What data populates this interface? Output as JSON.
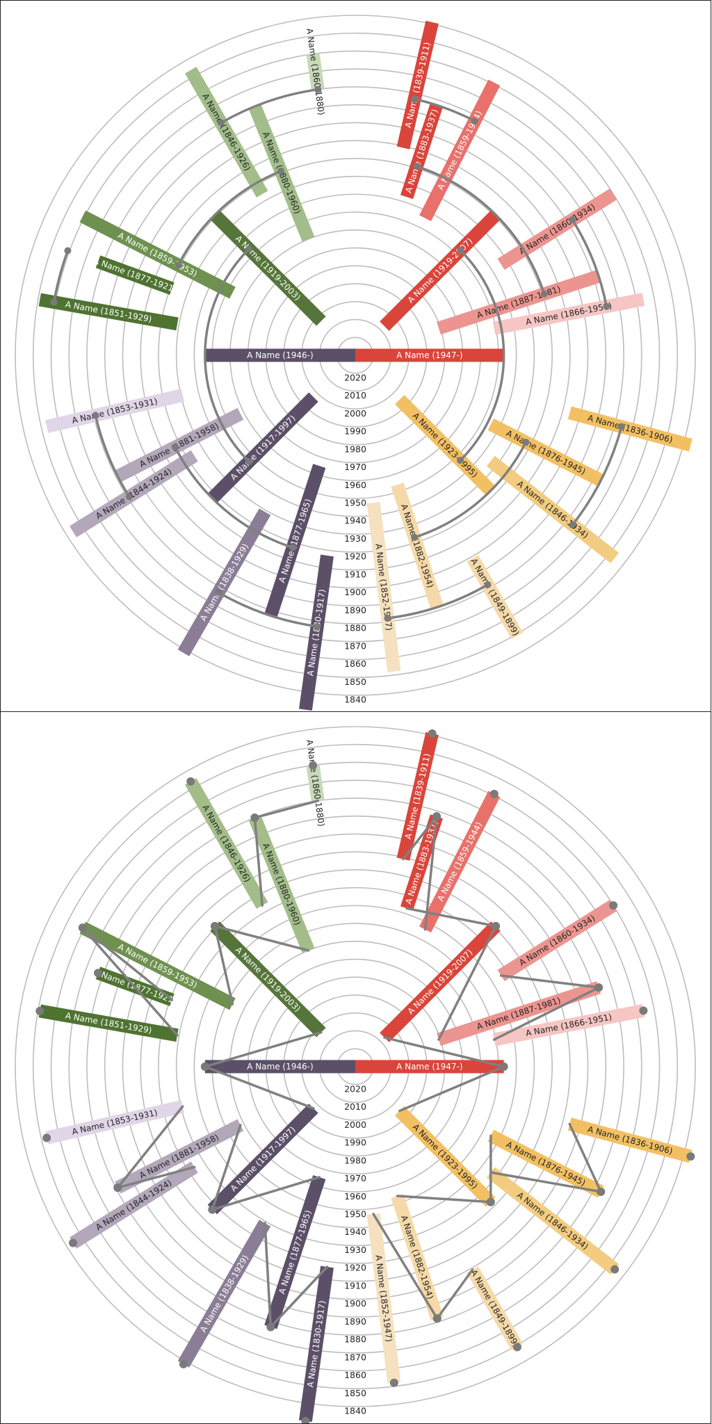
{
  "chart_data": [
    {
      "type": "radial-family-tree",
      "variant": "arc-connectors",
      "year_axis": {
        "ticks": [
          2020,
          2010,
          2000,
          1990,
          1980,
          1970,
          1960,
          1950,
          1940,
          1930,
          1920,
          1910,
          1900,
          1890,
          1880,
          1870,
          1860,
          1850,
          1840
        ],
        "center_year": 2030,
        "outer_year": 1840
      },
      "people": [
        {
          "id": "p0",
          "label": "A Name (1947-)",
          "birth": 1947,
          "death": 2030,
          "angle": 90,
          "color": "#d9453b",
          "text_color": "#ffffff"
        },
        {
          "id": "p1",
          "label": "A Name (1946-)",
          "birth": 1946,
          "death": 2030,
          "angle": 270,
          "color": "#5c5068",
          "text_color": "#ffffff"
        },
        {
          "id": "p2",
          "label": "A Name (1919-2007)",
          "birth": 1919,
          "death": 2007,
          "angle": 45,
          "color": "#d9453b",
          "text_color": "#ffffff"
        },
        {
          "id": "p3",
          "label": "A Name (1923-1995)",
          "birth": 1923,
          "death": 1995,
          "angle": 135,
          "color": "#f2c063",
          "text_color": "#222222"
        },
        {
          "id": "p4",
          "label": "A Name (1917-1997)",
          "birth": 1917,
          "death": 1997,
          "angle": 225,
          "color": "#5c5068",
          "text_color": "#ffffff"
        },
        {
          "id": "p5",
          "label": "A Name (1919-2003)",
          "birth": 1919,
          "death": 2003,
          "angle": 315,
          "color": "#56753a",
          "text_color": "#ffffff"
        },
        {
          "id": "p6",
          "label": "A Name (1883-1937)",
          "birth": 1883,
          "death": 1937,
          "angle": 18,
          "color": "#d9453b",
          "text_color": "#ffffff"
        },
        {
          "id": "p7",
          "label": "A Name (1887-1981)",
          "birth": 1887,
          "death": 1981,
          "angle": 72,
          "color": "#ec9590",
          "text_color": "#222222"
        },
        {
          "id": "p8",
          "label": "A Name (1876-1945)",
          "birth": 1876,
          "death": 1945,
          "angle": 117,
          "color": "#f2c063",
          "text_color": "#222222"
        },
        {
          "id": "p9",
          "label": "A Name (1882-1954)",
          "birth": 1882,
          "death": 1954,
          "angle": 162,
          "color": "#f5d9a8",
          "text_color": "#222222"
        },
        {
          "id": "p10",
          "label": "A Name (1877-1965)",
          "birth": 1877,
          "death": 1965,
          "angle": 198,
          "color": "#5c5068",
          "text_color": "#ffffff"
        },
        {
          "id": "p11",
          "label": "A Name (1881-1958)",
          "birth": 1881,
          "death": 1958,
          "angle": 243,
          "color": "#b3a7ba",
          "text_color": "#222222"
        },
        {
          "id": "p12",
          "label": "A Name (1859-1953)",
          "birth": 1859,
          "death": 1953,
          "angle": 297,
          "color": "#6f9150",
          "text_color": "#ffffff"
        },
        {
          "id": "p13",
          "label": "A Name (1880-1960)",
          "birth": 1880,
          "death": 1960,
          "angle": 338,
          "color": "#a2bd8a",
          "text_color": "#222222"
        },
        {
          "id": "p14",
          "label": "A Name (1839-1911)",
          "birth": 1839,
          "death": 1911,
          "angle": 13,
          "color": "#d9453b",
          "text_color": "#ffffff"
        },
        {
          "id": "p15",
          "label": "A Name (1859-1944)",
          "birth": 1859,
          "death": 1944,
          "angle": 27,
          "color": "#e8716b",
          "text_color": "#ffffff"
        },
        {
          "id": "p16",
          "label": "A Name (1860-1934)",
          "birth": 1860,
          "death": 1934,
          "angle": 58,
          "color": "#ec9590",
          "text_color": "#222222"
        },
        {
          "id": "p17",
          "label": "A Name (1866-1951)",
          "birth": 1866,
          "death": 1951,
          "angle": 79,
          "color": "#f6c6c4",
          "text_color": "#222222"
        },
        {
          "id": "p18",
          "label": "A Name (1836-1906)",
          "birth": 1836,
          "death": 1906,
          "angle": 105,
          "color": "#f2c063",
          "text_color": "#222222"
        },
        {
          "id": "p19",
          "label": "A Name (1846-1934)",
          "birth": 1846,
          "death": 1934,
          "angle": 128,
          "color": "#f2cc80",
          "text_color": "#222222"
        },
        {
          "id": "p20",
          "label": "A Name (1849-1899)",
          "birth": 1849,
          "death": 1899,
          "angle": 150,
          "color": "#f5d9a8",
          "text_color": "#222222"
        },
        {
          "id": "p21",
          "label": "A Name (1852-1947)",
          "birth": 1852,
          "death": 1947,
          "angle": 173,
          "color": "#f5e1bf",
          "text_color": "#222222"
        },
        {
          "id": "p22",
          "label": "A Name (1830-1917)",
          "birth": 1830,
          "death": 1917,
          "angle": 188,
          "color": "#5c5068",
          "text_color": "#ffffff"
        },
        {
          "id": "p23",
          "label": "A Name (1838-1929)",
          "birth": 1838,
          "death": 1929,
          "angle": 210,
          "color": "#8a7d95",
          "text_color": "#ffffff"
        },
        {
          "id": "p24",
          "label": "A Name (1844-1924)",
          "birth": 1844,
          "death": 1924,
          "angle": 238,
          "color": "#b3a7ba",
          "text_color": "#222222"
        },
        {
          "id": "p25",
          "label": "A Name (1853-1931)",
          "birth": 1853,
          "death": 1931,
          "angle": 257,
          "color": "#e1d5e8",
          "text_color": "#222222"
        },
        {
          "id": "p26",
          "label": "A Name (1851-1929)",
          "birth": 1851,
          "death": 1929,
          "angle": 280,
          "color": "#4f7331",
          "text_color": "#ffffff"
        },
        {
          "id": "p27",
          "label": "A Name (1877-1921)",
          "birth": 1877,
          "death": 1921,
          "angle": 290,
          "color": "#4f7331",
          "text_color": "#ffffff"
        },
        {
          "id": "p28",
          "label": "A Name (1846-1926)",
          "birth": 1846,
          "death": 1926,
          "angle": 330,
          "color": "#a2bd8a",
          "text_color": "#222222"
        },
        {
          "id": "p29",
          "label": "A Name (1860-1880)",
          "birth": 1860,
          "death": 1880,
          "angle": 352,
          "color": "#c7d9b7",
          "text_color": "#222222"
        }
      ],
      "families": [
        {
          "parents": [
            "p2",
            "p3"
          ],
          "children": [
            "p0"
          ]
        },
        {
          "parents": [
            "p4",
            "p5"
          ],
          "children": [
            "p1"
          ]
        },
        {
          "parents": [
            "p6",
            "p7"
          ],
          "children": [
            "p2"
          ]
        },
        {
          "parents": [
            "p8",
            "p9"
          ],
          "children": [
            "p3"
          ]
        },
        {
          "parents": [
            "p10",
            "p11"
          ],
          "children": [
            "p4"
          ]
        },
        {
          "parents": [
            "p12",
            "p13"
          ],
          "children": [
            "p5"
          ]
        },
        {
          "parents": [
            "p14",
            "p15"
          ],
          "children": [
            "p6"
          ]
        },
        {
          "parents": [
            "p16",
            "p17"
          ],
          "children": [
            "p7"
          ]
        },
        {
          "parents": [
            "p18",
            "p19"
          ],
          "children": [
            "p8"
          ]
        },
        {
          "parents": [
            "p20",
            "p21"
          ],
          "children": [
            "p9"
          ]
        },
        {
          "parents": [
            "p22",
            "p23"
          ],
          "children": [
            "p10"
          ]
        },
        {
          "parents": [
            "p24",
            "p25"
          ],
          "children": [
            "p11"
          ]
        },
        {
          "parents": [
            "p26",
            "p27"
          ],
          "children": [
            "p12"
          ]
        },
        {
          "parents": [
            "p28",
            "p29"
          ],
          "children": [
            "p13"
          ]
        }
      ]
    },
    {
      "type": "radial-family-tree",
      "variant": "straight-connectors",
      "same_people_as": 0
    }
  ]
}
